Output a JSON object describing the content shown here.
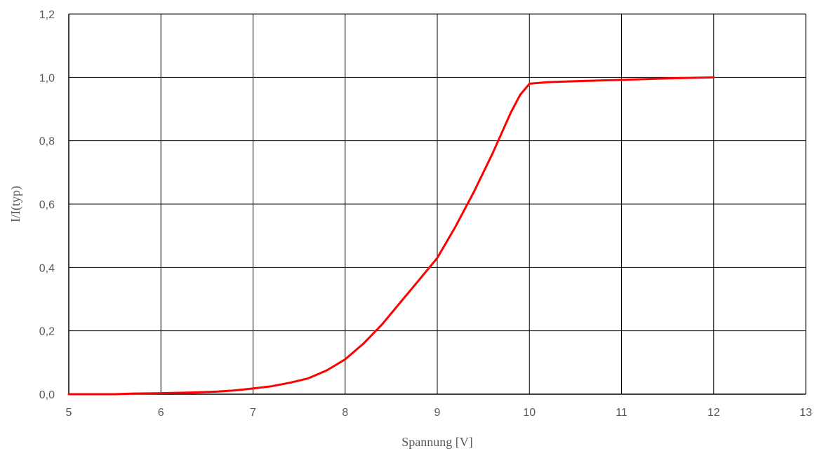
{
  "chart_data": {
    "type": "line",
    "xlabel": "Spannung [V]",
    "ylabel": "I/I(typ)",
    "xlim": [
      5,
      13
    ],
    "ylim": [
      0,
      1.2
    ],
    "x_ticks": [
      "5",
      "6",
      "7",
      "8",
      "9",
      "10",
      "11",
      "12",
      "13"
    ],
    "y_ticks": [
      "0,0",
      "0,2",
      "0,4",
      "0,6",
      "0,8",
      "1,0",
      "1,2"
    ],
    "grid": true,
    "series": [
      {
        "color": "#ff0000",
        "x": [
          5.0,
          5.5,
          5.7,
          6.0,
          6.3,
          6.6,
          6.8,
          7.0,
          7.2,
          7.4,
          7.6,
          7.8,
          8.0,
          8.2,
          8.4,
          8.6,
          8.8,
          9.0,
          9.2,
          9.4,
          9.6,
          9.8,
          9.9,
          10.0,
          10.2,
          10.5,
          11.0,
          11.5,
          12.0
        ],
        "y": [
          0.0,
          0.0,
          0.002,
          0.003,
          0.005,
          0.008,
          0.012,
          0.018,
          0.025,
          0.036,
          0.05,
          0.075,
          0.11,
          0.16,
          0.22,
          0.29,
          0.36,
          0.43,
          0.53,
          0.64,
          0.76,
          0.89,
          0.945,
          0.98,
          0.985,
          0.988,
          0.992,
          0.997,
          1.0
        ]
      }
    ]
  }
}
